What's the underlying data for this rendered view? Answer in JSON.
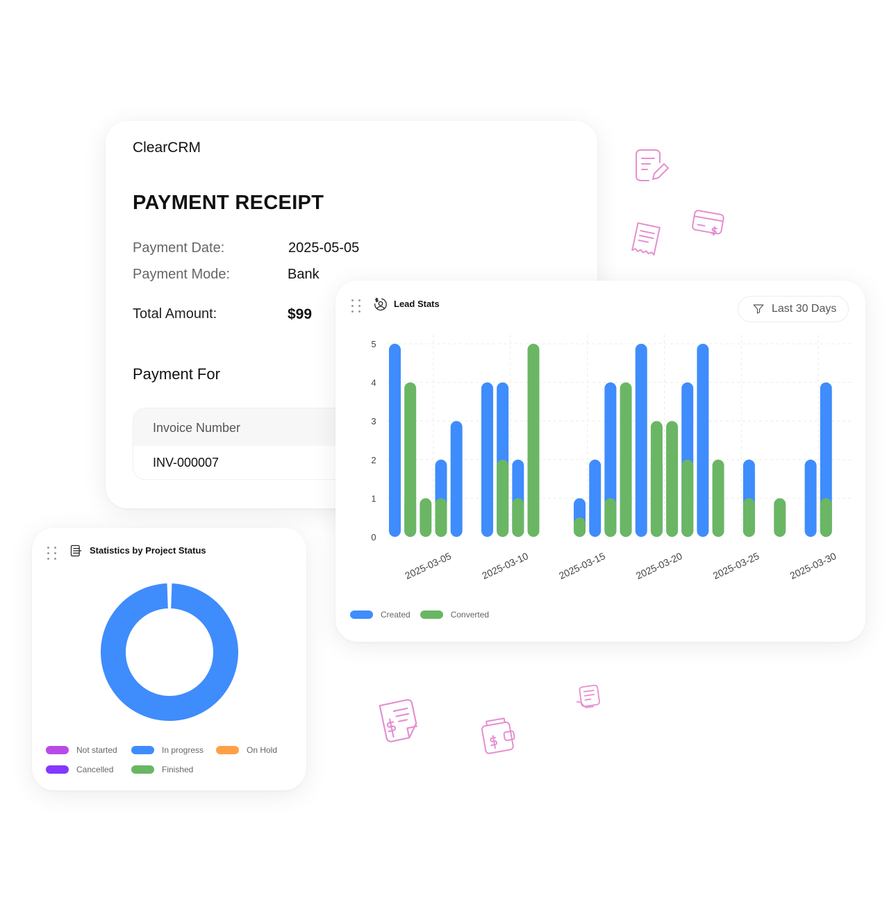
{
  "receipt": {
    "brand": "ClearCRM",
    "title": "PAYMENT RECEIPT",
    "payment_date_label": "Payment Date:",
    "payment_date": "2025-05-05",
    "payment_mode_label": "Payment Mode:",
    "payment_mode": "Bank",
    "total_label": "Total Amount:",
    "total": "$99",
    "section_title": "Payment For",
    "table": {
      "header": "Invoice Number",
      "rows": [
        "INV-000007"
      ]
    }
  },
  "lead_stats": {
    "title": "Lead Stats",
    "filter_label": "Last 30 Days",
    "icon": "user-dollar-icon",
    "filter_icon": "filter-icon"
  },
  "project_status": {
    "title": "Statistics by Project Status",
    "icon": "list-icon",
    "legend": [
      {
        "label": "Not started",
        "color": "#b84be8"
      },
      {
        "label": "In progress",
        "color": "#3f8cfc"
      },
      {
        "label": "On Hold",
        "color": "#ffa048"
      },
      {
        "label": "Cancelled",
        "color": "#8338ff"
      },
      {
        "label": "Finished",
        "color": "#6ab664"
      }
    ]
  },
  "colors": {
    "created": "#3f8cfc",
    "converted": "#6ab664",
    "deco": "#e58fd0"
  },
  "decorative_icons": [
    "edit-document-icon",
    "receipt-icon",
    "card-dollar-icon",
    "invoice-dollar-icon",
    "wallet-dollar-icon",
    "receipt-hand-icon"
  ],
  "chart_data": [
    {
      "type": "bar",
      "x": [
        "2025-03-03",
        "2025-03-04",
        "2025-03-05",
        "2025-03-06",
        "2025-03-07",
        "2025-03-08",
        "2025-03-09",
        "2025-03-10",
        "2025-03-11",
        "2025-03-12",
        "2025-03-13",
        "2025-03-14",
        "2025-03-15",
        "2025-03-16",
        "2025-03-17",
        "2025-03-18",
        "2025-03-19",
        "2025-03-20",
        "2025-03-21",
        "2025-03-22",
        "2025-03-23",
        "2025-03-24",
        "2025-03-25",
        "2025-03-26",
        "2025-03-27",
        "2025-03-28",
        "2025-03-29",
        "2025-03-30",
        "2025-03-31"
      ],
      "series": [
        {
          "name": "Created",
          "values": [
            5,
            1,
            0,
            2,
            3,
            0,
            4,
            4,
            2,
            0,
            0,
            0,
            1,
            2,
            4,
            2,
            5,
            2,
            0,
            4,
            5,
            0,
            0,
            2,
            0,
            0,
            0,
            2,
            4
          ]
        },
        {
          "name": "Converted",
          "values": [
            0,
            4,
            1,
            1,
            0,
            0,
            0,
            2,
            1,
            5,
            0,
            0,
            0.5,
            0,
            1,
            4,
            0,
            3,
            3,
            2,
            0,
            2,
            0,
            1,
            0,
            1,
            0,
            0,
            1
          ]
        }
      ],
      "xticks": [
        "2025-03-05",
        "2025-03-10",
        "2025-03-15",
        "2025-03-20",
        "2025-03-25",
        "2025-03-30"
      ],
      "yticks": [
        0,
        1,
        2,
        3,
        4,
        5
      ],
      "ylim": [
        0,
        5
      ],
      "legend_position": "bottom-left",
      "grid": true
    },
    {
      "type": "pie",
      "categories": [
        "Not started",
        "In progress",
        "On Hold",
        "Cancelled",
        "Finished"
      ],
      "values": [
        0,
        100,
        0,
        0,
        0
      ],
      "style": "donut"
    }
  ]
}
